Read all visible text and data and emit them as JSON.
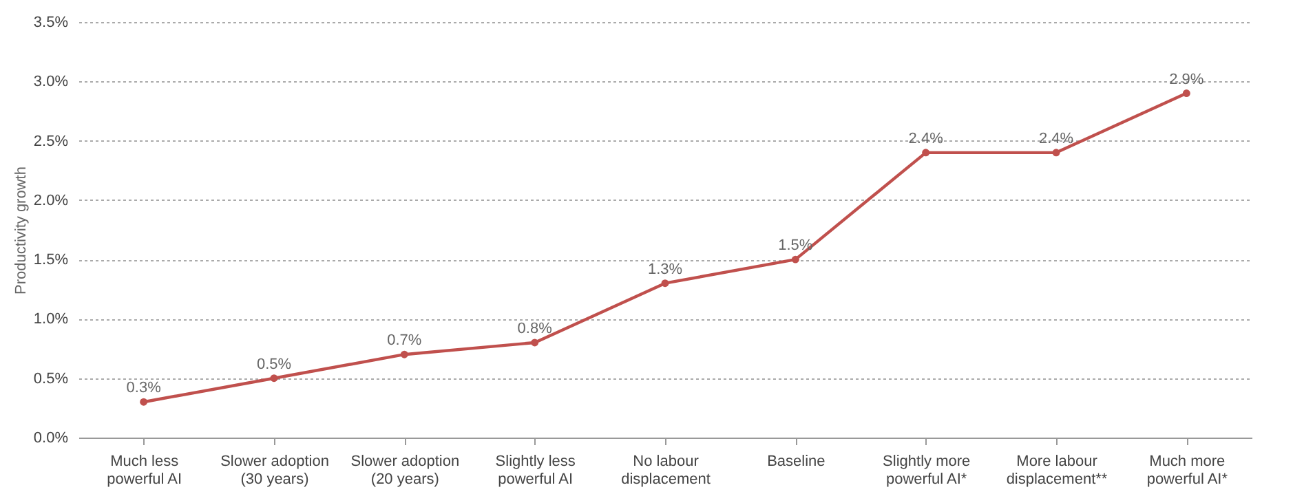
{
  "chart_data": {
    "type": "line",
    "ylabel": "Productivity growth",
    "categories": [
      "Much less powerful AI",
      "Slower adoption (30 years)",
      "Slower adoption (20 years)",
      "Slightly less powerful AI",
      "No labour displacement",
      "Baseline",
      "Slightly more powerful AI*",
      "More labour displacement**",
      "Much more powerful AI*"
    ],
    "series": [
      {
        "color": "#c0504d",
        "values": [
          0.3,
          0.5,
          0.7,
          0.8,
          1.3,
          1.5,
          2.4,
          2.4,
          2.9
        ],
        "value_labels": [
          "0.3%",
          "0.5%",
          "0.7%",
          "0.8%",
          "1.3%",
          "1.5%",
          "2.4%",
          "2.4%",
          "2.9%"
        ]
      }
    ],
    "ylim": [
      0,
      3.5
    ],
    "yticks": [
      {
        "value": 0,
        "label": "0.0%"
      },
      {
        "value": 0.5,
        "label": "0.5%"
      },
      {
        "value": 1,
        "label": "1.0%"
      },
      {
        "value": 1.5,
        "label": "1.5%"
      },
      {
        "value": 2,
        "label": "2.0%"
      },
      {
        "value": 2.5,
        "label": "2.5%"
      },
      {
        "value": 3,
        "label": "3.0%"
      },
      {
        "value": 3.5,
        "label": "3.5%"
      }
    ],
    "grid": "y",
    "marker": "circle",
    "line_style": "solid"
  }
}
